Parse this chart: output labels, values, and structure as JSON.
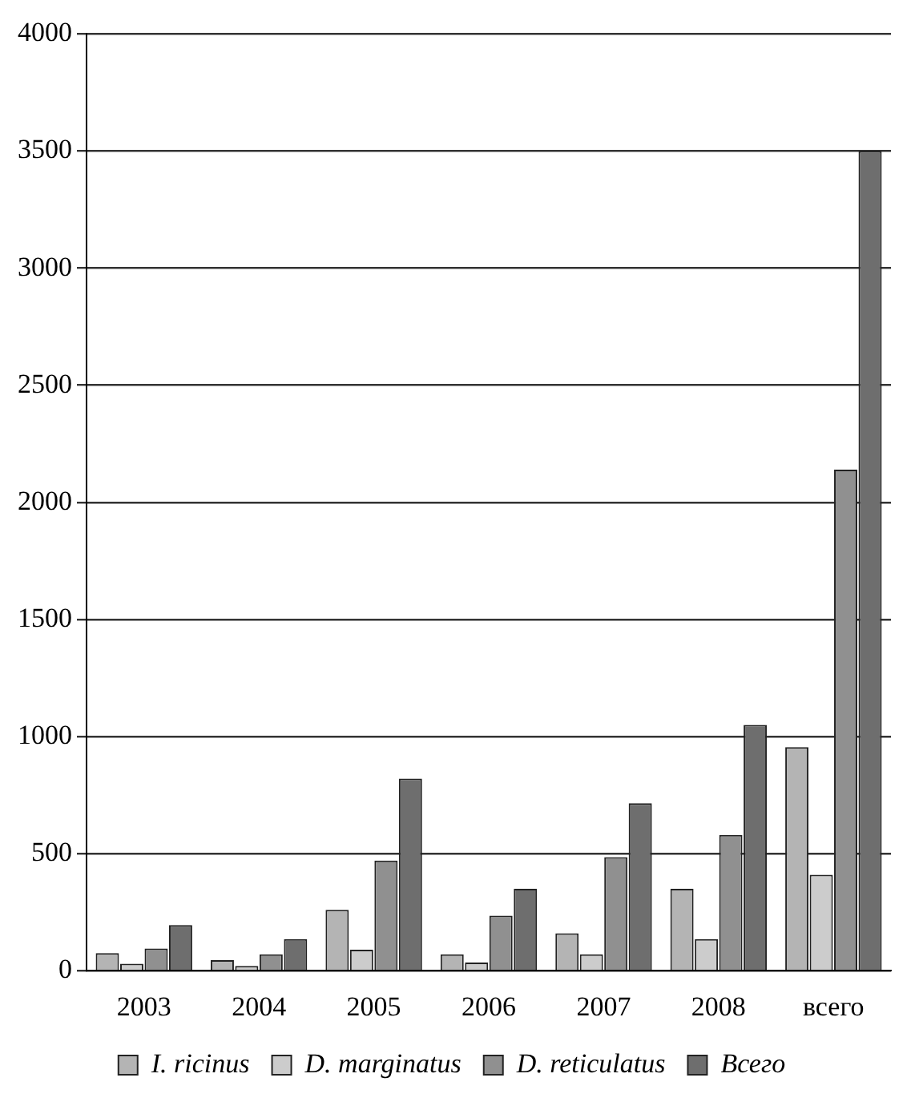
{
  "chart_data": {
    "type": "bar",
    "categories": [
      "2003",
      "2004",
      "2005",
      "2006",
      "2007",
      "2008",
      "всего"
    ],
    "series": [
      {
        "name": "I. ricinus",
        "color": "#b4b4b4",
        "values": [
          75,
          45,
          260,
          70,
          160,
          350,
          955
        ]
      },
      {
        "name": "D. marginatus",
        "color": "#cccccc",
        "values": [
          30,
          20,
          90,
          35,
          70,
          135,
          410
        ]
      },
      {
        "name": "D. reticulatus",
        "color": "#909090",
        "values": [
          95,
          70,
          470,
          235,
          485,
          580,
          2140
        ]
      },
      {
        "name": "Всего",
        "color": "#6e6e6e",
        "values": [
          195,
          135,
          820,
          350,
          715,
          1050,
          3500
        ]
      }
    ],
    "ylim": [
      0,
      4000
    ],
    "yticks": [
      0,
      500,
      1000,
      1500,
      2000,
      2500,
      3000,
      3500,
      4000
    ],
    "grid": "y",
    "legend": "bottom"
  }
}
